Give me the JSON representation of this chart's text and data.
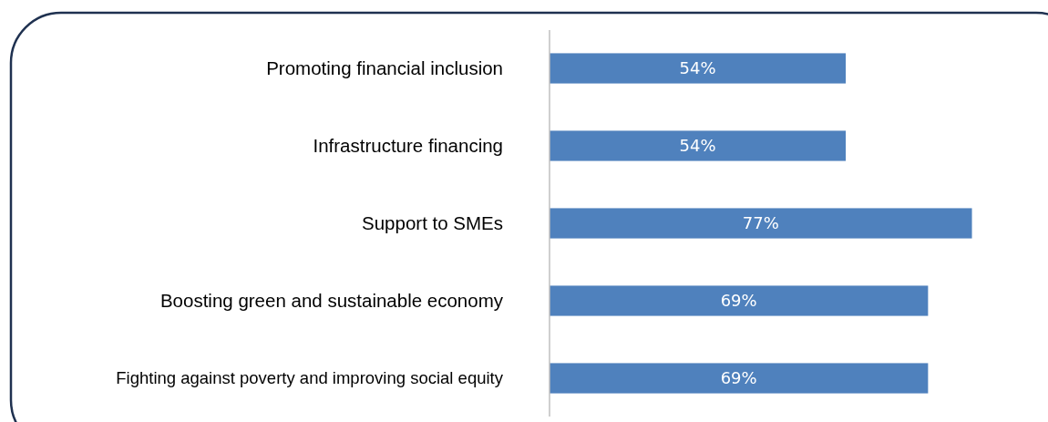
{
  "chart_data": {
    "type": "bar",
    "orientation": "horizontal",
    "categories": [
      "Promoting financial inclusion",
      "Infrastructure  financing",
      "Support to SMEs",
      "Boosting green and sustainable economy",
      "Fighting against poverty and improving social equity"
    ],
    "values": [
      54,
      54,
      77,
      69,
      69
    ],
    "value_labels": [
      "54%",
      "54%",
      "77%",
      "69%",
      "69%"
    ],
    "color": "#4f81bd",
    "tick_labels": "y"
  }
}
